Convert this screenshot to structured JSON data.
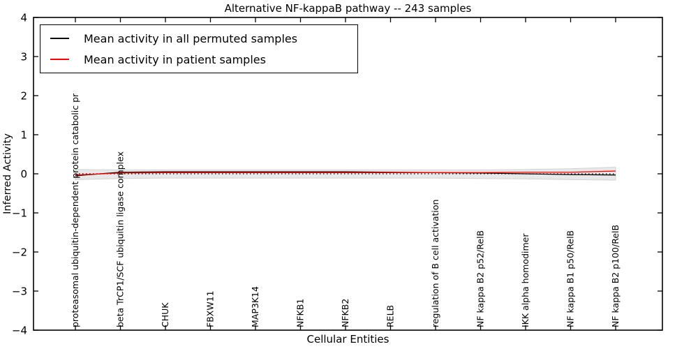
{
  "chart_data": {
    "type": "line",
    "title": "Alternative NF-kappaB pathway -- 243 samples",
    "xlabel": "Cellular Entities",
    "ylabel": "Inferred Activity",
    "ylim": [
      -4,
      4
    ],
    "yticks": [
      -4,
      -3,
      -2,
      -1,
      0,
      1,
      2,
      3,
      4
    ],
    "grid": false,
    "legend_position": "upper left",
    "categories": [
      "proteasomal ubiquitin-dependent protein catabolic pr",
      "beta TrCP1/SCF ubiquitin ligase complex",
      "CHUK",
      "FBXW11",
      "MAP3K14",
      "NFKB1",
      "NFKB2",
      "RELB",
      "regulation of B cell activation",
      "NF kappa B2 p52/RelB",
      "IKK alpha homodimer",
      "NF kappa B1 p50/RelB",
      "NF kappa B2 p100/RelB"
    ],
    "series": [
      {
        "name": "Mean activity in all permuted samples",
        "color": "#000000",
        "style": "solid",
        "values": [
          -0.05,
          0.04,
          0.05,
          0.05,
          0.05,
          0.05,
          0.05,
          0.04,
          0.03,
          0.02,
          0.0,
          -0.02,
          -0.03
        ]
      },
      {
        "name": "Mean activity in patient samples",
        "color": "#ff0000",
        "style": "solid",
        "values": [
          -0.03,
          0.02,
          0.03,
          0.03,
          0.03,
          0.03,
          0.03,
          0.03,
          0.03,
          0.03,
          0.04,
          0.04,
          0.07
        ]
      }
    ],
    "band": {
      "name": "permuted-samples-spread",
      "fill_color": "#e8e8e8",
      "edge_color": "#d2d2d2",
      "upper": [
        0.11,
        0.1,
        0.1,
        0.1,
        0.1,
        0.1,
        0.1,
        0.1,
        0.1,
        0.1,
        0.11,
        0.13,
        0.17
      ],
      "lower": [
        -0.15,
        -0.12,
        -0.11,
        -0.11,
        -0.11,
        -0.11,
        -0.11,
        -0.11,
        -0.11,
        -0.12,
        -0.13,
        -0.15,
        -0.16
      ]
    },
    "zero_line": {
      "value": 0,
      "style": "dotted",
      "color": "#000000"
    }
  }
}
